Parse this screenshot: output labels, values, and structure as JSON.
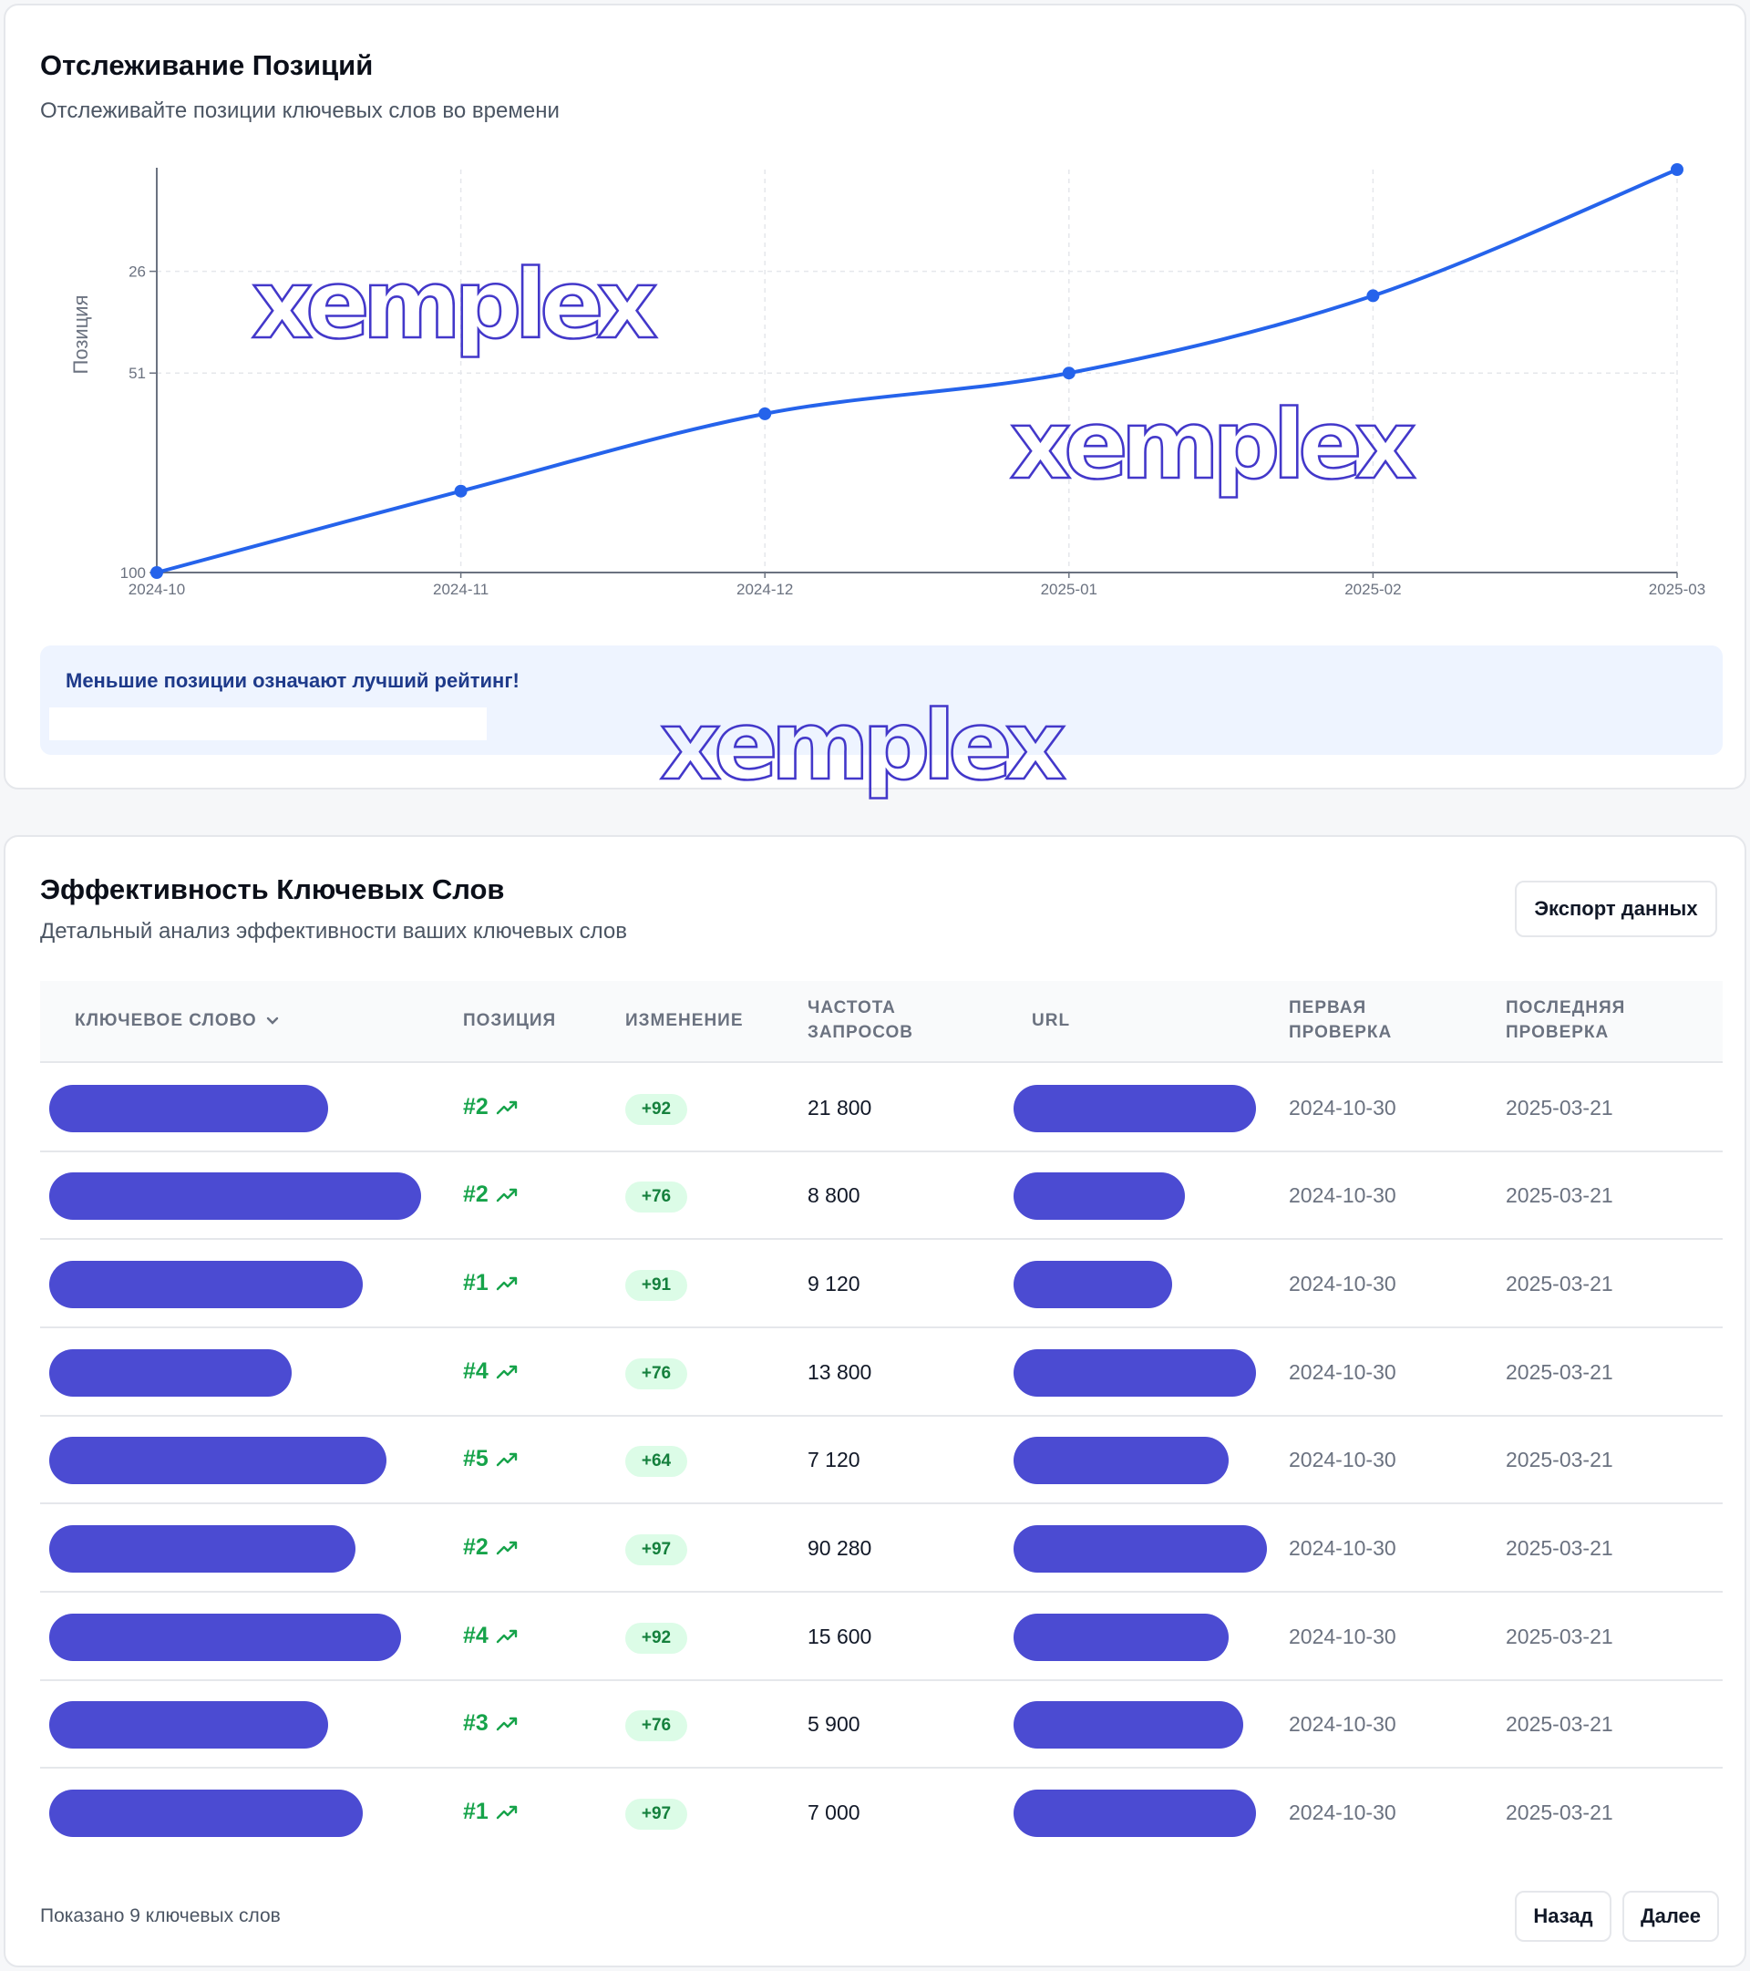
{
  "tracking": {
    "title": "Отслеживание Позиций",
    "subtitle": "Отслеживайте позиции ключевых слов во времени",
    "info_text": "Меньшие позиции означают лучший рейтинг!"
  },
  "chart_data": {
    "type": "line",
    "title": "",
    "xlabel": "",
    "ylabel": "Позиция",
    "y_axis_reversed": true,
    "y_ticks": [
      26,
      51,
      100
    ],
    "x": [
      "2024-10",
      "2024-11",
      "2024-12",
      "2025-01",
      "2025-02",
      "2025-03"
    ],
    "series": [
      {
        "values": [
          100,
          80,
          61,
          51,
          32,
          1
        ],
        "color": "#2563eb"
      }
    ],
    "grid": true
  },
  "watermark_text": "xemplex",
  "keywords": {
    "title": "Эффективность Ключевых Слов",
    "subtitle": "Детальный анализ эффективности ваших ключевых слов",
    "export_label": "Экспорт данных",
    "columns": {
      "keyword": "КЛЮЧЕВОЕ СЛОВО",
      "position": "ПОЗИЦИЯ",
      "change": "ИЗМЕНЕНИЕ",
      "frequency_1": "ЧАСТОТА",
      "frequency_2": "ЗАПРОСОВ",
      "url": "URL",
      "first_check_1": "ПЕРВАЯ",
      "first_check_2": "ПРОВЕРКА",
      "last_check_1": "ПОСЛЕДНЯЯ",
      "last_check_2": "ПРОВЕРКА"
    },
    "rows": [
      {
        "position": "#2",
        "change": "+92",
        "frequency": "21 800",
        "first_check": "2024-10-30",
        "last_check": "2025-03-21"
      },
      {
        "position": "#2",
        "change": "+76",
        "frequency": "8 800",
        "first_check": "2024-10-30",
        "last_check": "2025-03-21"
      },
      {
        "position": "#1",
        "change": "+91",
        "frequency": "9 120",
        "first_check": "2024-10-30",
        "last_check": "2025-03-21"
      },
      {
        "position": "#4",
        "change": "+76",
        "frequency": "13 800",
        "first_check": "2024-10-30",
        "last_check": "2025-03-21"
      },
      {
        "position": "#5",
        "change": "+64",
        "frequency": "7 120",
        "first_check": "2024-10-30",
        "last_check": "2025-03-21"
      },
      {
        "position": "#2",
        "change": "+97",
        "frequency": "90 280",
        "first_check": "2024-10-30",
        "last_check": "2025-03-21"
      },
      {
        "position": "#4",
        "change": "+92",
        "frequency": "15 600",
        "first_check": "2024-10-30",
        "last_check": "2025-03-21"
      },
      {
        "position": "#3",
        "change": "+76",
        "frequency": "5 900",
        "first_check": "2024-10-30",
        "last_check": "2025-03-21"
      },
      {
        "position": "#1",
        "change": "+97",
        "frequency": "7 000",
        "first_check": "2024-10-30",
        "last_check": "2025-03-21"
      }
    ],
    "footer_text": "Показано 9 ключевых слов",
    "prev_label": "Назад",
    "next_label": "Далее"
  },
  "colors": {
    "accent_line": "#2563eb",
    "redaction": "#4b4bd2",
    "success": "#16a34a",
    "info_bg": "#eef4ff"
  }
}
